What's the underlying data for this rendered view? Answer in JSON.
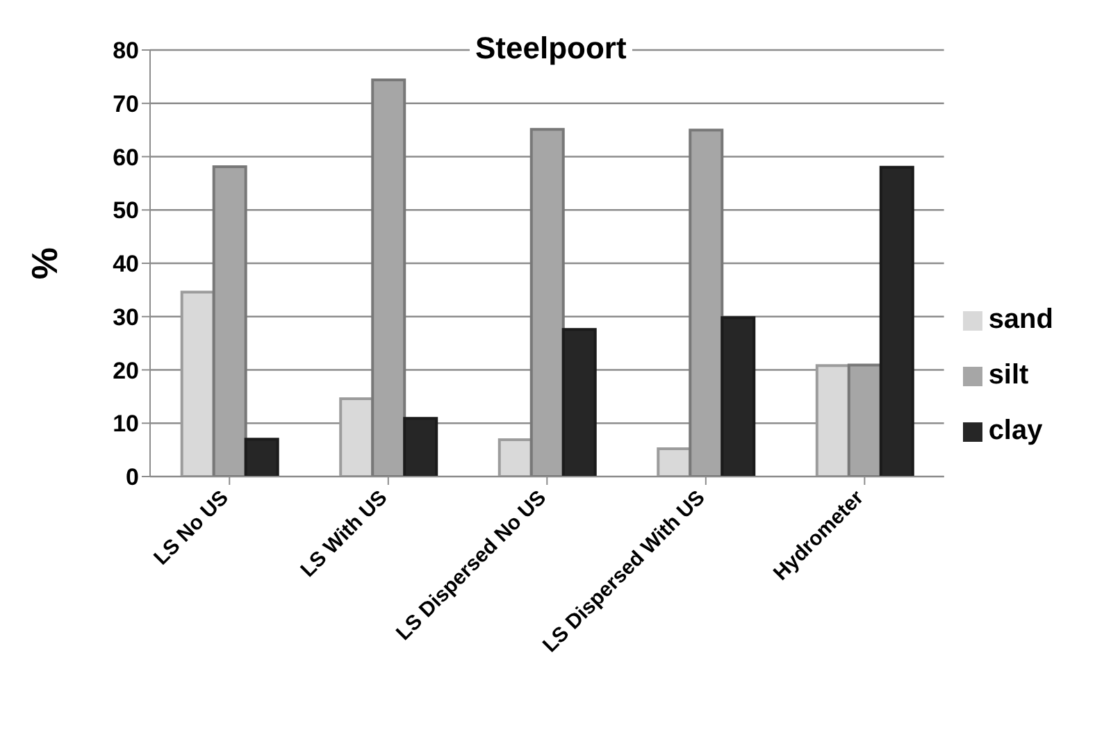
{
  "chart_data": {
    "type": "bar",
    "title": "Steelpoort",
    "ylabel": "%",
    "categories": [
      "LS No US",
      "LS With US",
      "LS Dispersed No US",
      "LS Dispersed With US",
      "Hydrometer"
    ],
    "series": [
      {
        "name": "sand",
        "color": "#d9d9d9",
        "values": [
          34.6,
          14.6,
          6.9,
          5.2,
          20.8
        ]
      },
      {
        "name": "silt",
        "color": "#a6a6a6",
        "values": [
          58.1,
          74.4,
          65.1,
          65.0,
          20.9
        ]
      },
      {
        "name": "clay",
        "color": "#262626",
        "values": [
          7.0,
          10.9,
          27.6,
          29.8,
          58.0
        ]
      }
    ],
    "ylim": [
      0,
      80
    ],
    "yticks": [
      0,
      10,
      20,
      30,
      40,
      50,
      60,
      70,
      80
    ],
    "grid": "y",
    "legend": "right"
  }
}
